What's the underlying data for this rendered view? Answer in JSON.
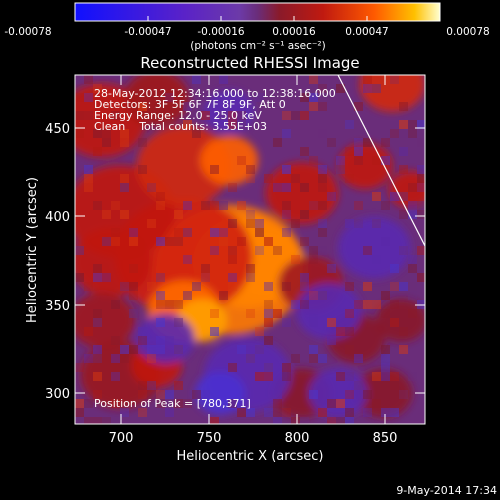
{
  "colorbar": {
    "tick_labels": [
      "-0.00078",
      "-0.00047",
      "-0.00016",
      "0.00016",
      "0.00047",
      "0.00078"
    ],
    "units_label": "(photons cm⁻² s⁻¹ asec⁻²)",
    "stops": [
      "#1010ff",
      "#5a22c8",
      "#6c3aa8",
      "#6a2d7a",
      "#8a1a2a",
      "#c01a10",
      "#ff5a00",
      "#ffc000",
      "#ffffd0"
    ]
  },
  "image": {
    "title": "Reconstructed RHESSI Image",
    "info_lines": [
      "28-May-2012 12:34:16.000 to 12:38:16.000",
      "Detectors: 3F 5F 6F 7F 8F 9F, Att 0",
      "Energy Range: 12.0 - 25.0 keV",
      "Clean    Total counts: 3.55E+03"
    ],
    "peak_label": "Position of Peak = [780,371]",
    "xlabel": "Heliocentric X (arcsec)",
    "ylabel": "Heliocentric Y (arcsec)",
    "x_ticks": [
      "700",
      "750",
      "800",
      "850"
    ],
    "y_ticks": [
      "300",
      "350",
      "400",
      "450"
    ],
    "x_range": [
      675,
      868
    ],
    "y_range": [
      283,
      475
    ],
    "peak_position": [
      780,
      371
    ],
    "background_color": "#6a2d7a"
  },
  "footer": {
    "timestamp": "9-May-2014 17:34"
  }
}
